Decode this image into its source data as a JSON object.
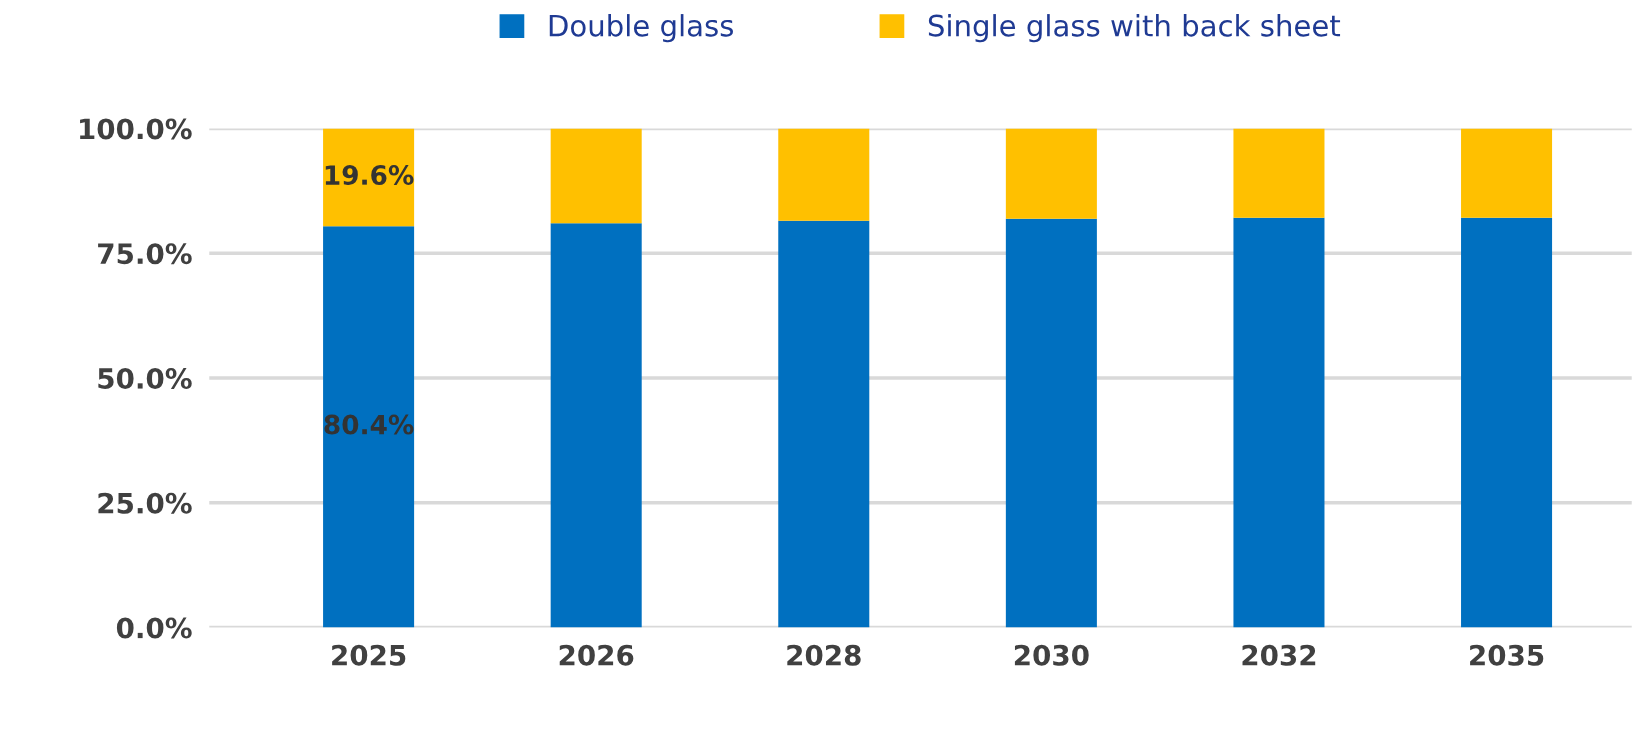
{
  "chart_data": {
    "type": "bar",
    "stacked": true,
    "categories": [
      "2025",
      "2026",
      "2028",
      "2030",
      "2032",
      "2035"
    ],
    "series": [
      {
        "name": "Double glass",
        "color": "#0070c0",
        "values": [
          80.4,
          81.0,
          81.5,
          81.9,
          82.1,
          82.1
        ],
        "value_labels": [
          "80.4%",
          null,
          null,
          null,
          null,
          null
        ]
      },
      {
        "name": "Single glass with back sheet",
        "color": "#ffc000",
        "values": [
          19.6,
          19.0,
          18.5,
          18.1,
          17.9,
          17.9
        ],
        "value_labels": [
          "19.6%",
          null,
          null,
          null,
          null,
          null
        ]
      }
    ],
    "ylim": [
      0,
      100
    ],
    "yticks": [
      {
        "value": 0,
        "label": "0.0%"
      },
      {
        "value": 25,
        "label": "25.0%"
      },
      {
        "value": 50,
        "label": "50.0%"
      },
      {
        "value": 75,
        "label": "75.0%"
      },
      {
        "value": 100,
        "label": "100.0%"
      }
    ],
    "grid": "y",
    "legend": "top"
  }
}
